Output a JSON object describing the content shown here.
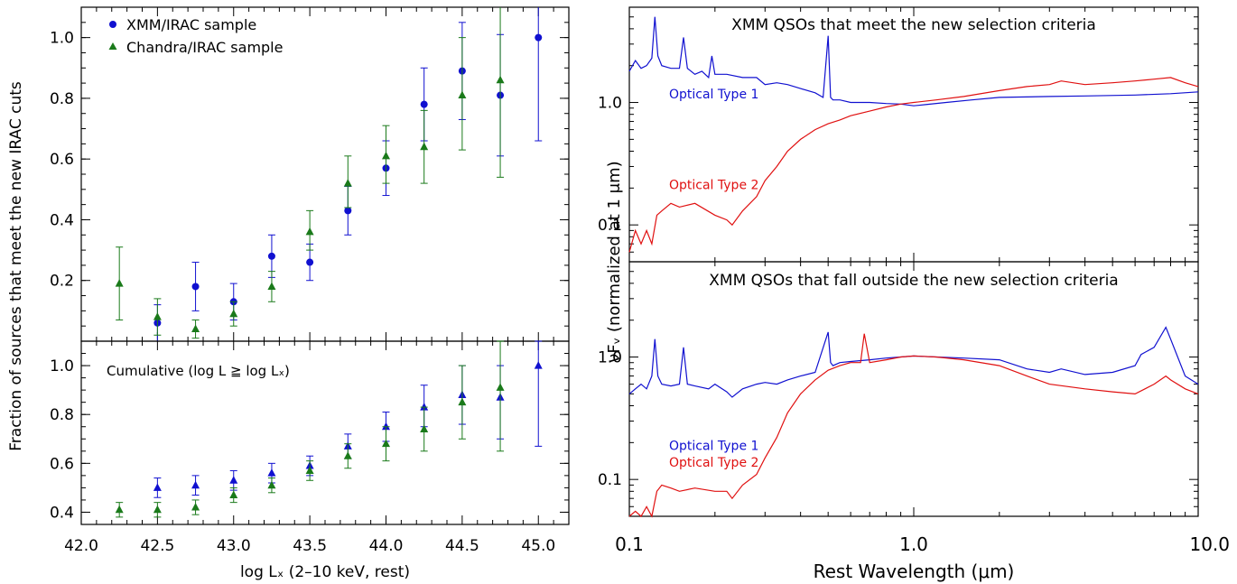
{
  "colors": {
    "xmm": "#1010d0",
    "chandra": "#1a7a1a",
    "type1": "#1010d0",
    "type2": "#e01010",
    "axis": "#000000"
  },
  "left_panels": {
    "ylabel": "Fraction of sources that meet the new IRAC cuts",
    "xlabel": "log Lₓ (2–10 keV, rest)",
    "xticks": [
      "42.0",
      "42.5",
      "43.0",
      "43.5",
      "44.0",
      "44.5",
      "45.0"
    ]
  },
  "right_panels": {
    "ylabel": "νFᵥ (normalized at 1 μm)",
    "xlabel": "Rest Wavelength (μm)",
    "xticks": [
      "0.1",
      "1.0",
      "10.0"
    ],
    "yticks": [
      "0.1",
      "1.0"
    ]
  },
  "chart_data": [
    {
      "type": "scatter",
      "panel": "top-left",
      "xlim": [
        42.0,
        45.2
      ],
      "ylim": [
        0,
        1.1
      ],
      "yticks": [
        "0.2",
        "0.4",
        "0.6",
        "0.8",
        "1.0"
      ],
      "legend": {
        "placement": "top-left",
        "entries": [
          "XMM/IRAC sample",
          "Chandra/IRAC sample"
        ]
      },
      "series": [
        {
          "name": "XMM/IRAC sample",
          "marker": "circle",
          "x": [
            42.5,
            42.75,
            43.0,
            43.25,
            43.5,
            43.75,
            44.0,
            44.25,
            44.5,
            44.75,
            45.0
          ],
          "y": [
            0.06,
            0.18,
            0.13,
            0.28,
            0.26,
            0.43,
            0.57,
            0.78,
            0.89,
            0.81,
            1.0
          ],
          "err_low": [
            0.06,
            0.08,
            0.06,
            0.07,
            0.06,
            0.08,
            0.09,
            0.12,
            0.16,
            0.2,
            0.34
          ],
          "err_high": [
            0.06,
            0.08,
            0.06,
            0.07,
            0.06,
            0.08,
            0.09,
            0.12,
            0.16,
            0.2,
            0.15
          ]
        },
        {
          "name": "Chandra/IRAC sample",
          "marker": "triangle",
          "x": [
            42.25,
            42.5,
            42.75,
            43.0,
            43.25,
            43.5,
            43.75,
            44.0,
            44.25,
            44.5,
            44.75
          ],
          "y": [
            0.19,
            0.08,
            0.04,
            0.09,
            0.18,
            0.36,
            0.52,
            0.61,
            0.64,
            0.81,
            0.86
          ],
          "err_low": [
            0.12,
            0.06,
            0.03,
            0.04,
            0.05,
            0.06,
            0.08,
            0.09,
            0.12,
            0.18,
            0.32
          ],
          "err_high": [
            0.12,
            0.06,
            0.03,
            0.04,
            0.05,
            0.07,
            0.09,
            0.1,
            0.12,
            0.19,
            0.25
          ]
        }
      ]
    },
    {
      "type": "scatter",
      "panel": "bottom-left",
      "annotation": "Cumulative (log L ≧ log Lₓ)",
      "xlim": [
        42.0,
        45.2
      ],
      "ylim": [
        0.35,
        1.1
      ],
      "yticks": [
        "0.4",
        "0.6",
        "0.8",
        "1.0"
      ],
      "series": [
        {
          "name": "XMM/IRAC sample",
          "marker": "triangle",
          "x": [
            42.5,
            42.75,
            43.0,
            43.25,
            43.5,
            43.75,
            44.0,
            44.25,
            44.5,
            44.75,
            45.0
          ],
          "y": [
            0.5,
            0.51,
            0.53,
            0.56,
            0.59,
            0.67,
            0.75,
            0.83,
            0.88,
            0.87,
            1.0
          ],
          "err_low": [
            0.04,
            0.04,
            0.04,
            0.04,
            0.04,
            0.05,
            0.06,
            0.08,
            0.12,
            0.17,
            0.33
          ],
          "err_high": [
            0.04,
            0.04,
            0.04,
            0.04,
            0.04,
            0.05,
            0.06,
            0.09,
            0.12,
            0.13,
            0.1
          ]
        },
        {
          "name": "Chandra/IRAC sample",
          "marker": "triangle",
          "x": [
            42.25,
            42.5,
            42.75,
            43.0,
            43.25,
            43.5,
            43.75,
            44.0,
            44.25,
            44.5,
            44.75
          ],
          "y": [
            0.41,
            0.41,
            0.42,
            0.47,
            0.51,
            0.57,
            0.63,
            0.68,
            0.74,
            0.85,
            0.91
          ],
          "err_low": [
            0.03,
            0.03,
            0.03,
            0.03,
            0.03,
            0.04,
            0.05,
            0.07,
            0.09,
            0.15,
            0.26
          ],
          "err_high": [
            0.03,
            0.03,
            0.03,
            0.03,
            0.03,
            0.04,
            0.05,
            0.07,
            0.09,
            0.15,
            0.19
          ]
        }
      ]
    },
    {
      "type": "line",
      "panel": "top-right",
      "title": "XMM QSOs that meet the new selection criteria",
      "xscale": "log",
      "yscale": "log",
      "xlim": [
        0.1,
        10.0
      ],
      "ylim": [
        0.05,
        6.0
      ],
      "series": [
        {
          "name": "Optical Type 1",
          "label_pos": "upper",
          "x": [
            0.1,
            0.105,
            0.11,
            0.115,
            0.12,
            0.123,
            0.126,
            0.13,
            0.14,
            0.15,
            0.155,
            0.16,
            0.17,
            0.18,
            0.19,
            0.195,
            0.2,
            0.22,
            0.25,
            0.28,
            0.3,
            0.33,
            0.36,
            0.4,
            0.45,
            0.48,
            0.5,
            0.51,
            0.52,
            0.55,
            0.6,
            0.7,
            0.8,
            0.9,
            1.0,
            1.1,
            1.3,
            1.6,
            2.0,
            3.0,
            4.0,
            6.0,
            8.0,
            10.0
          ],
          "y": [
            1.8,
            2.2,
            1.9,
            2.0,
            2.3,
            5.0,
            2.4,
            2.0,
            1.9,
            1.9,
            3.4,
            1.9,
            1.7,
            1.8,
            1.6,
            2.4,
            1.7,
            1.7,
            1.6,
            1.6,
            1.4,
            1.45,
            1.4,
            1.3,
            1.2,
            1.1,
            3.5,
            1.1,
            1.05,
            1.05,
            1.0,
            1.0,
            0.98,
            0.97,
            0.94,
            0.96,
            1.0,
            1.05,
            1.1,
            1.12,
            1.13,
            1.15,
            1.18,
            1.22
          ]
        },
        {
          "name": "Optical Type 2",
          "label_pos": "lower",
          "x": [
            0.1,
            0.105,
            0.11,
            0.115,
            0.12,
            0.125,
            0.13,
            0.14,
            0.15,
            0.17,
            0.2,
            0.22,
            0.23,
            0.25,
            0.28,
            0.3,
            0.33,
            0.36,
            0.4,
            0.45,
            0.5,
            0.55,
            0.6,
            0.7,
            0.8,
            0.9,
            1.0,
            1.2,
            1.5,
            2.0,
            2.5,
            3.0,
            3.3,
            4.0,
            5.0,
            6.0,
            7.0,
            8.0,
            9.0,
            10.0
          ],
          "y": [
            0.06,
            0.09,
            0.07,
            0.09,
            0.07,
            0.12,
            0.13,
            0.15,
            0.14,
            0.15,
            0.12,
            0.11,
            0.1,
            0.13,
            0.17,
            0.23,
            0.3,
            0.4,
            0.5,
            0.6,
            0.67,
            0.72,
            0.78,
            0.85,
            0.92,
            0.97,
            1.0,
            1.05,
            1.12,
            1.25,
            1.35,
            1.4,
            1.5,
            1.4,
            1.45,
            1.5,
            1.55,
            1.6,
            1.45,
            1.35
          ]
        }
      ]
    },
    {
      "type": "line",
      "panel": "bottom-right",
      "title": "XMM QSOs that fall outside the new selection criteria",
      "xscale": "log",
      "yscale": "log",
      "xlim": [
        0.1,
        10.0
      ],
      "ylim": [
        0.05,
        6.0
      ],
      "series": [
        {
          "name": "Optical Type 1",
          "label_pos": "upper",
          "x": [
            0.1,
            0.105,
            0.11,
            0.115,
            0.12,
            0.123,
            0.126,
            0.13,
            0.14,
            0.15,
            0.155,
            0.16,
            0.17,
            0.19,
            0.2,
            0.22,
            0.23,
            0.25,
            0.28,
            0.3,
            0.33,
            0.36,
            0.4,
            0.45,
            0.5,
            0.51,
            0.52,
            0.55,
            0.6,
            0.7,
            0.8,
            0.9,
            1.0,
            1.2,
            1.5,
            2.0,
            2.5,
            3.0,
            3.3,
            4.0,
            5.0,
            6.0,
            6.3,
            7.0,
            7.7,
            8.0,
            9.0,
            10.0
          ],
          "y": [
            0.5,
            0.55,
            0.6,
            0.55,
            0.7,
            1.4,
            0.7,
            0.6,
            0.58,
            0.6,
            1.2,
            0.6,
            0.58,
            0.55,
            0.6,
            0.52,
            0.47,
            0.55,
            0.6,
            0.62,
            0.6,
            0.65,
            0.7,
            0.75,
            1.6,
            0.9,
            0.85,
            0.9,
            0.92,
            0.95,
            0.98,
            1.0,
            1.02,
            1.0,
            0.98,
            0.95,
            0.8,
            0.75,
            0.8,
            0.72,
            0.75,
            0.85,
            1.05,
            1.2,
            1.75,
            1.4,
            0.7,
            0.6
          ]
        },
        {
          "name": "Optical Type 2",
          "label_pos": "lower",
          "x": [
            0.1,
            0.105,
            0.11,
            0.115,
            0.12,
            0.125,
            0.13,
            0.14,
            0.15,
            0.17,
            0.2,
            0.22,
            0.23,
            0.25,
            0.28,
            0.3,
            0.33,
            0.36,
            0.4,
            0.45,
            0.5,
            0.55,
            0.6,
            0.65,
            0.67,
            0.7,
            0.8,
            0.9,
            1.0,
            1.2,
            1.5,
            2.0,
            2.5,
            3.0,
            4.0,
            5.0,
            6.0,
            6.5,
            7.0,
            7.7,
            8.0,
            9.0,
            10.0
          ],
          "y": [
            0.05,
            0.055,
            0.05,
            0.06,
            0.05,
            0.08,
            0.09,
            0.085,
            0.08,
            0.085,
            0.08,
            0.08,
            0.07,
            0.09,
            0.11,
            0.15,
            0.22,
            0.35,
            0.5,
            0.65,
            0.78,
            0.85,
            0.9,
            0.9,
            1.55,
            0.9,
            0.95,
            1.0,
            1.02,
            1.0,
            0.95,
            0.85,
            0.7,
            0.6,
            0.55,
            0.52,
            0.5,
            0.55,
            0.6,
            0.7,
            0.65,
            0.55,
            0.5
          ]
        }
      ]
    }
  ]
}
